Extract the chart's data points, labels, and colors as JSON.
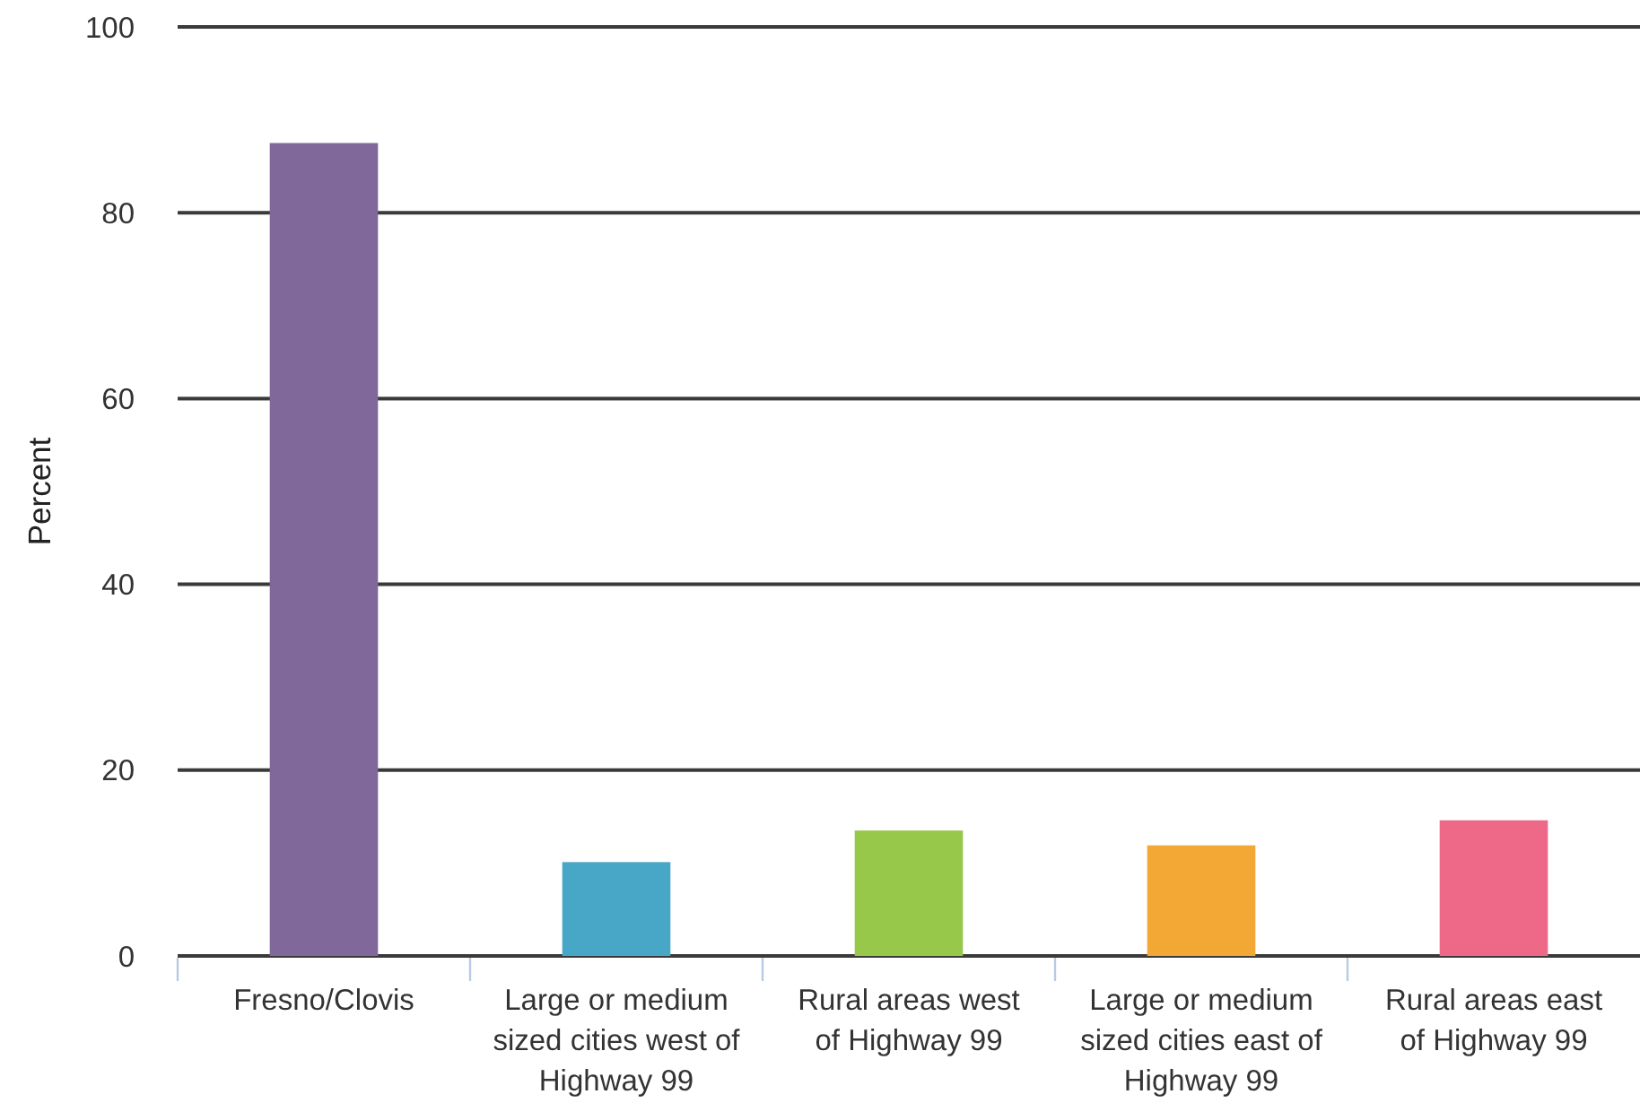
{
  "chart_data": {
    "type": "bar",
    "ylabel": "Percent",
    "categories": [
      "Fresno/Clovis",
      "Large or medium sized cities west of Highway 99",
      "Rural areas west of Highway 99",
      "Large or medium sized cities east of Highway 99",
      "Rural areas east of Highway 99"
    ],
    "values": [
      87.5,
      10.1,
      13.5,
      11.9,
      14.6
    ],
    "colors": [
      "#80689a",
      "#48a7c7",
      "#98c84a",
      "#f3a734",
      "#ee6987"
    ],
    "ylim": [
      0,
      100
    ],
    "yticks": [
      0,
      20,
      40,
      60,
      80,
      100
    ],
    "grid": "y"
  }
}
